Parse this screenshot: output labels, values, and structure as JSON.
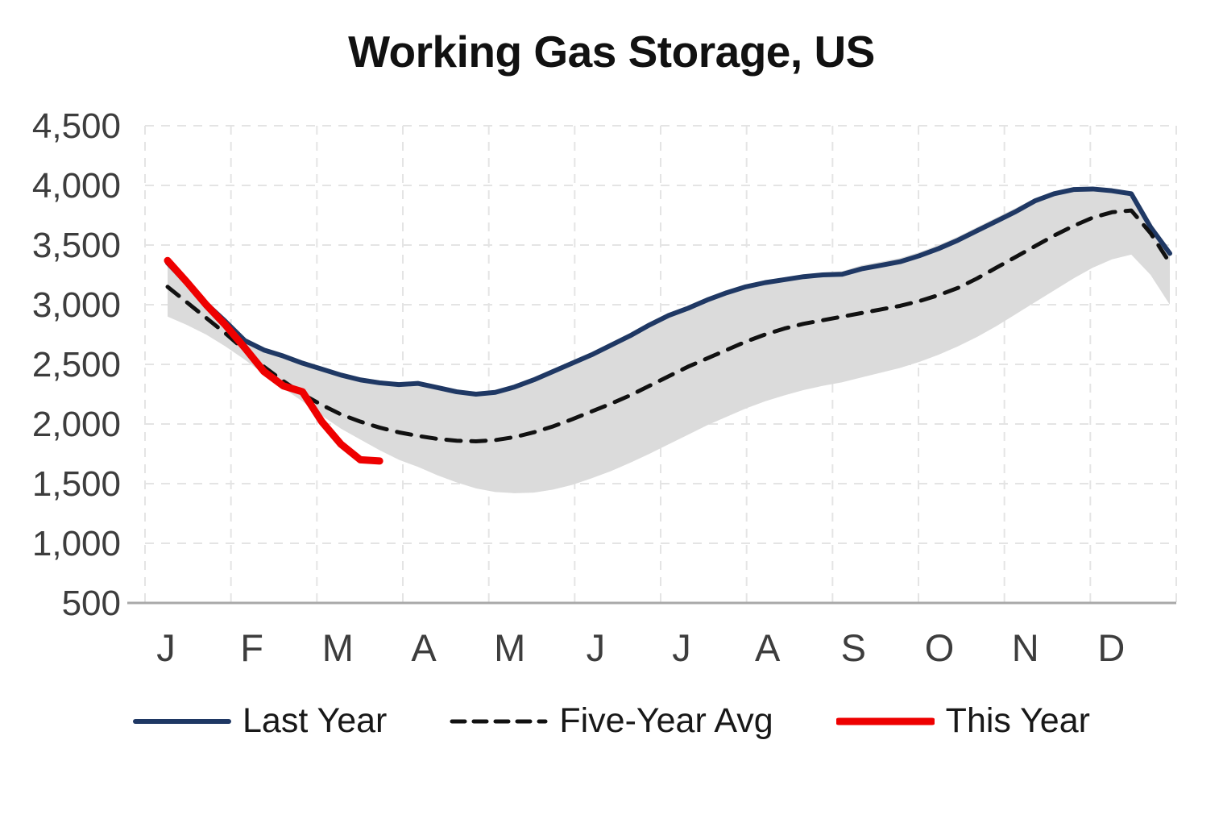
{
  "title": "Working Gas Storage, US",
  "legend": {
    "items": [
      {
        "label": "Last Year",
        "color": "#1F3864",
        "style": "solid",
        "stroke_width": 6
      },
      {
        "label": "Five-Year Avg",
        "color": "#111111",
        "style": "dashed",
        "stroke_width": 5
      },
      {
        "label": "This Year",
        "color": "#EE0000",
        "style": "solid",
        "stroke_width": 9
      }
    ]
  },
  "chart_data": {
    "type": "line",
    "title": "Working Gas Storage, US",
    "x_tick_labels": [
      "J",
      "F",
      "M",
      "A",
      "M",
      "J",
      "J",
      "A",
      "S",
      "O",
      "N",
      "D"
    ],
    "y_ticks": [
      500,
      1000,
      1500,
      2000,
      2500,
      3000,
      3500,
      4000,
      4500
    ],
    "ylim": [
      500,
      4500
    ],
    "grid": true,
    "legend_position": "bottom",
    "band": {
      "name": "five-year-range",
      "color": "#DBDBDB",
      "upper": [
        3380,
        3200,
        3030,
        2880,
        2720,
        2640,
        2590,
        2530,
        2480,
        2430,
        2390,
        2365,
        2350,
        2360,
        2325,
        2290,
        2270,
        2285,
        2330,
        2390,
        2460,
        2530,
        2600,
        2680,
        2760,
        2850,
        2930,
        2990,
        3060,
        3120,
        3170,
        3205,
        3230,
        3255,
        3270,
        3280,
        3330,
        3360,
        3390,
        3440,
        3500,
        3570,
        3650,
        3730,
        3810,
        3890,
        3945,
        3975,
        3980,
        3965,
        3940,
        3660,
        3440
      ],
      "lower": [
        2900,
        2830,
        2750,
        2650,
        2540,
        2420,
        2300,
        2190,
        2070,
        1960,
        1870,
        1780,
        1700,
        1640,
        1570,
        1510,
        1460,
        1430,
        1420,
        1425,
        1450,
        1490,
        1545,
        1605,
        1675,
        1750,
        1830,
        1910,
        1990,
        2060,
        2130,
        2190,
        2240,
        2285,
        2320,
        2350,
        2390,
        2430,
        2470,
        2520,
        2580,
        2650,
        2730,
        2820,
        2920,
        3020,
        3120,
        3220,
        3310,
        3380,
        3420,
        3250,
        3000
      ]
    },
    "series": [
      {
        "name": "Last Year",
        "color": "#1F3864",
        "style": "solid",
        "stroke_width": 6,
        "values": [
          3350,
          3180,
          3010,
          2860,
          2700,
          2620,
          2570,
          2510,
          2460,
          2410,
          2370,
          2345,
          2330,
          2340,
          2305,
          2270,
          2250,
          2265,
          2310,
          2370,
          2440,
          2510,
          2580,
          2660,
          2740,
          2830,
          2910,
          2970,
          3040,
          3100,
          3150,
          3185,
          3210,
          3235,
          3250,
          3255,
          3300,
          3330,
          3360,
          3410,
          3470,
          3540,
          3620,
          3700,
          3780,
          3870,
          3930,
          3965,
          3970,
          3955,
          3930,
          3650,
          3430
        ]
      },
      {
        "name": "Five-Year Avg",
        "color": "#111111",
        "style": "dashed",
        "stroke_width": 5,
        "values": [
          3150,
          3020,
          2890,
          2760,
          2620,
          2480,
          2360,
          2250,
          2160,
          2080,
          2020,
          1970,
          1930,
          1900,
          1875,
          1860,
          1855,
          1865,
          1890,
          1930,
          1980,
          2040,
          2105,
          2170,
          2240,
          2320,
          2400,
          2480,
          2550,
          2620,
          2690,
          2750,
          2800,
          2840,
          2870,
          2900,
          2930,
          2960,
          2990,
          3030,
          3080,
          3140,
          3220,
          3310,
          3400,
          3490,
          3580,
          3660,
          3730,
          3775,
          3790,
          3600,
          3350
        ]
      },
      {
        "name": "This Year",
        "color": "#EE0000",
        "style": "solid",
        "stroke_width": 9,
        "values": [
          3370,
          3190,
          3000,
          2830,
          2640,
          2440,
          2320,
          2270,
          2020,
          1830,
          1700,
          1690
        ]
      }
    ]
  }
}
